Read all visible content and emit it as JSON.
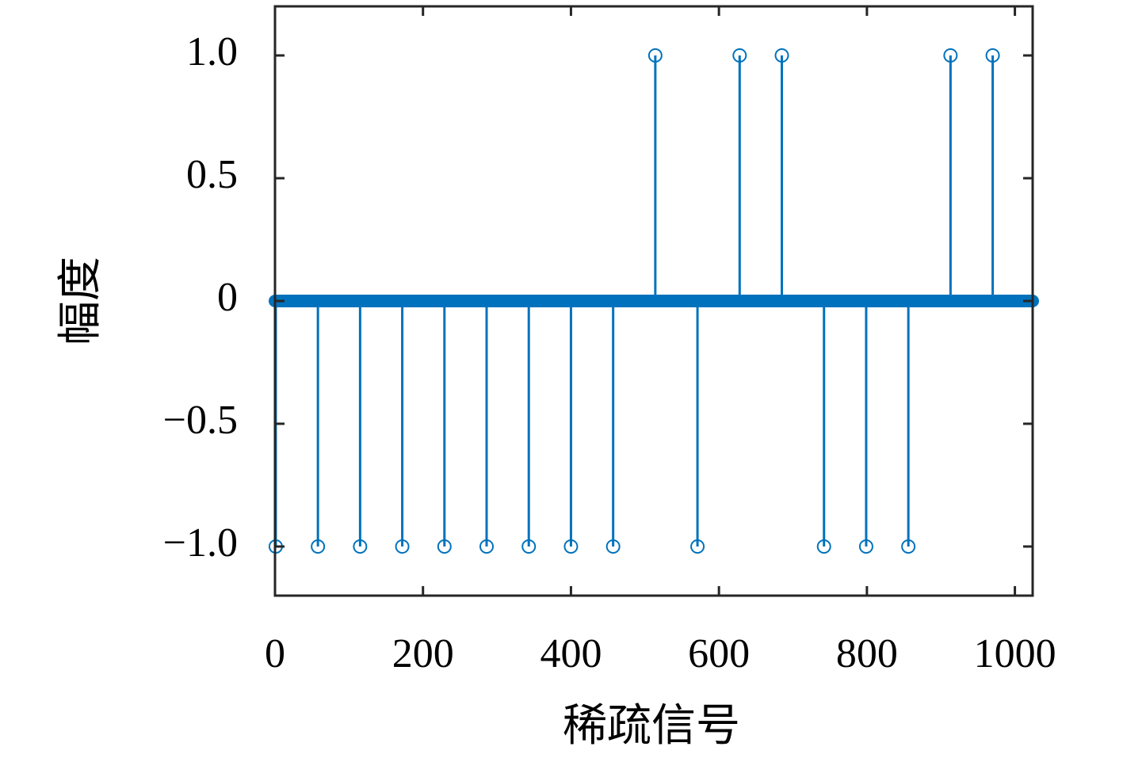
{
  "chart_data": {
    "type": "stem",
    "xlabel": "稀疏信号",
    "ylabel": "幅度",
    "color": "#0072bd",
    "x": [
      1,
      58,
      115,
      172,
      229,
      286,
      343,
      400,
      457,
      514,
      571,
      628,
      685,
      742,
      799,
      856,
      913,
      970
    ],
    "values": [
      -1,
      -1,
      -1,
      -1,
      -1,
      -1,
      -1,
      -1,
      -1,
      1,
      -1,
      1,
      1,
      -1,
      -1,
      -1,
      1,
      1
    ],
    "xlim": [
      0,
      1024
    ],
    "ylim": [
      -1.2,
      1.2
    ],
    "xticks": [
      0,
      200,
      400,
      600,
      800,
      1000
    ],
    "yticks": [
      {
        "value": -1,
        "label": "−1.0"
      },
      {
        "value": -0.5,
        "label": "−0.5"
      },
      0,
      0.5,
      {
        "value": 1,
        "label": "1.0"
      }
    ]
  }
}
